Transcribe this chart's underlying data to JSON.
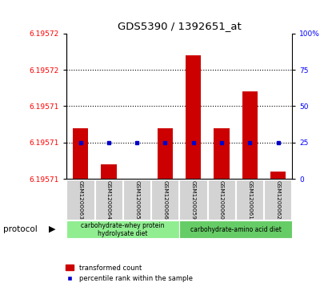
{
  "title": "GDS5390 / 1392651_at",
  "samples": [
    "GSM1200063",
    "GSM1200064",
    "GSM1200065",
    "GSM1200066",
    "GSM1200059",
    "GSM1200060",
    "GSM1200061",
    "GSM1200062"
  ],
  "transformed_count": [
    6.195715,
    6.19571,
    6.195708,
    6.195715,
    6.195725,
    6.195715,
    6.19572,
    6.195709
  ],
  "percentile_rank": [
    25,
    25,
    25,
    25,
    25,
    25,
    25,
    25
  ],
  "y_min": 6.195708,
  "y_max": 6.195728,
  "bar_color": "#cc0000",
  "dot_color": "#0000cc",
  "group1_label": "carbohydrate-whey protein\nhydrolysate diet",
  "group2_label": "carbohydrate-amino acid diet",
  "group1_color": "#90ee90",
  "group2_color": "#66cc66",
  "protocol_label": "protocol",
  "legend_bar_label": "transformed count",
  "legend_dot_label": "percentile rank within the sample",
  "left_ytick_labels": [
    "6.19571",
    "6.19571",
    "6.19571",
    "6.19572",
    "6.19572"
  ],
  "right_ytick_labels": [
    "0",
    "25",
    "50",
    "75",
    "100%"
  ]
}
